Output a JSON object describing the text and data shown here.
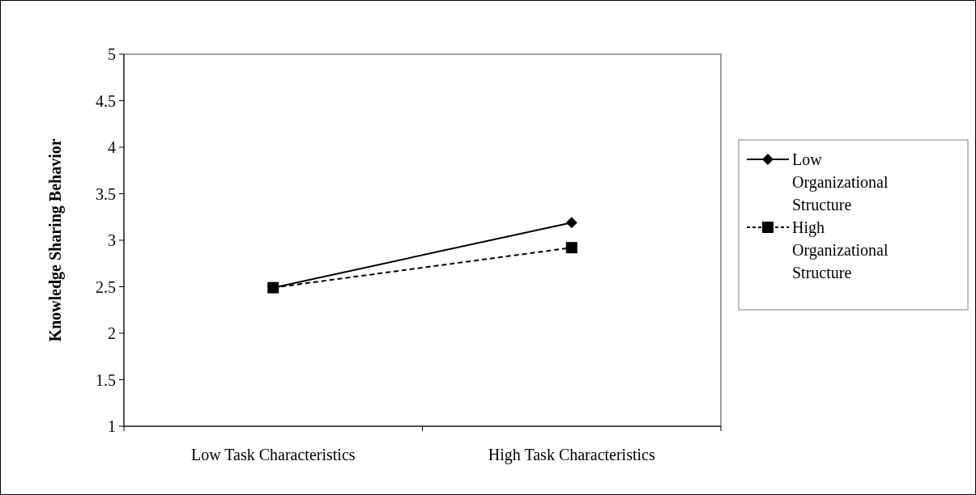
{
  "chart_data": {
    "type": "line",
    "ylabel": "Knowledge Sharing Behavior",
    "categories": [
      "Low Task Characteristics",
      "High Task Characteristics"
    ],
    "series": [
      {
        "name": "Low Organizational Structure",
        "color": "#000000",
        "values": [
          2.49,
          3.19
        ],
        "marker": "diamond",
        "line_style": "solid"
      },
      {
        "name": "High Organizational Structure",
        "color": "#000000",
        "values": [
          2.49,
          2.92
        ],
        "marker": "square",
        "line_style": "dashed"
      }
    ],
    "ylim": [
      1,
      5
    ],
    "yticks": [
      1,
      1.5,
      2,
      2.5,
      3,
      3.5,
      4,
      4.5,
      5
    ],
    "grid": false,
    "legend": "right"
  }
}
